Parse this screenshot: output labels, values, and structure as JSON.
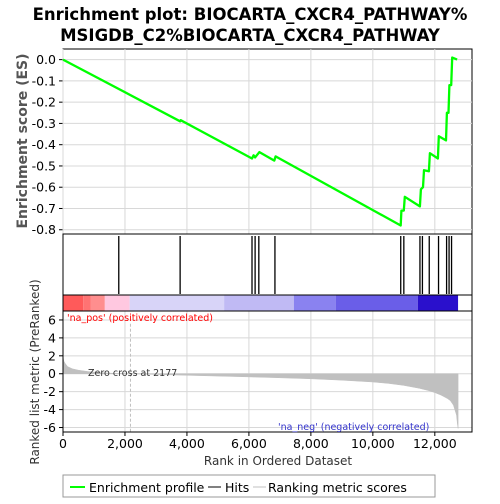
{
  "title_line1": "Enrichment plot: BIOCARTA_CXCR4_PATHWAY%",
  "title_line2": "MSIGDB_C2%BIOCARTA_CXCR4_PATHWAY",
  "colors": {
    "enrichment_line": "#00ff00",
    "hit_line": "#000000",
    "metric_fill": "#c0c0c0",
    "grid": "#d8d8d8",
    "pos_label": "#ff0000",
    "neg_label": "#3333cc",
    "zero_cross_line": "#c0c0c0"
  },
  "annotations": {
    "na_pos": "'na_pos' (positively correlated)",
    "na_neg": "'na_neg' (negatively correlated)",
    "zero_cross": "Zero cross at 2177"
  },
  "legend": {
    "items": [
      "Enrichment profile",
      "Hits",
      "Ranking metric scores"
    ]
  },
  "chart_data": [
    {
      "type": "line",
      "title": "",
      "ylabel": "Enrichment score (ES)",
      "xlim": [
        0,
        13200
      ],
      "ylim": [
        -0.82,
        0.05
      ],
      "yticks": [
        0.0,
        -0.1,
        -0.2,
        -0.3,
        -0.4,
        -0.5,
        -0.6,
        -0.7,
        -0.8
      ],
      "ytick_labels": [
        "0.0",
        "-0.1",
        "-0.2",
        "-0.3",
        "-0.4",
        "-0.5",
        "-0.6",
        "-0.7",
        "-0.8"
      ],
      "grid": true,
      "series": [
        {
          "name": "Enrichment profile",
          "x": [
            0,
            3780,
            3800,
            6100,
            6150,
            6200,
            6280,
            6340,
            6820,
            6860,
            10900,
            10920,
            11000,
            11030,
            11520,
            11550,
            11620,
            11650,
            11810,
            11840,
            12100,
            12130,
            12360,
            12390,
            12440,
            12470,
            12530,
            12560,
            12720
          ],
          "y": [
            0.0,
            -0.29,
            -0.285,
            -0.465,
            -0.45,
            -0.46,
            -0.445,
            -0.435,
            -0.475,
            -0.455,
            -0.78,
            -0.71,
            -0.71,
            -0.645,
            -0.69,
            -0.61,
            -0.6,
            -0.52,
            -0.525,
            -0.44,
            -0.465,
            -0.36,
            -0.38,
            -0.25,
            -0.25,
            -0.12,
            -0.12,
            0.01,
            0.0
          ]
        }
      ]
    },
    {
      "type": "hits",
      "name": "Hits",
      "positions": [
        1800,
        3780,
        6100,
        6200,
        6320,
        6840,
        10900,
        11000,
        11520,
        11600,
        11820,
        12120,
        12380,
        12460,
        12540
      ]
    },
    {
      "type": "heatmap",
      "name": "ranking color bar",
      "segments": [
        {
          "start": 0,
          "end": 650,
          "color": "#ff5a5a"
        },
        {
          "start": 650,
          "end": 900,
          "color": "#ff7373"
        },
        {
          "start": 900,
          "end": 1350,
          "color": "#ff8e8e"
        },
        {
          "start": 1350,
          "end": 2150,
          "color": "#ffc8e0"
        },
        {
          "start": 2150,
          "end": 5200,
          "color": "#d8d4f8"
        },
        {
          "start": 5200,
          "end": 7450,
          "color": "#c0baf4"
        },
        {
          "start": 7450,
          "end": 8800,
          "color": "#8a82f0"
        },
        {
          "start": 8800,
          "end": 11450,
          "color": "#6a5ee8"
        },
        {
          "start": 11450,
          "end": 12750,
          "color": "#2a10cc"
        }
      ]
    },
    {
      "type": "area",
      "title": "",
      "xlabel": "Rank in Ordered Dataset",
      "ylabel": "Ranked list metric (PreRanked)",
      "xlim": [
        0,
        13200
      ],
      "ylim": [
        -6.5,
        7
      ],
      "xticks": [
        0,
        2000,
        4000,
        6000,
        8000,
        10000,
        12000
      ],
      "xtick_labels": [
        "0",
        "2,000",
        "4,000",
        "6,000",
        "8,000",
        "10,000",
        "12,000"
      ],
      "yticks": [
        6,
        4,
        2,
        0,
        -2,
        -4,
        -6
      ],
      "ytick_labels": [
        "6",
        "4",
        "2",
        "0",
        "-2",
        "-4",
        "-6"
      ],
      "zero_cross": 2177,
      "series": [
        {
          "name": "Ranking metric scores",
          "x": [
            0,
            30,
            80,
            150,
            300,
            500,
            800,
            1200,
            1700,
            2177,
            3000,
            4000,
            5000,
            6000,
            7000,
            8000,
            9000,
            10000,
            10500,
            11000,
            11500,
            11800,
            12000,
            12200,
            12400,
            12500,
            12600,
            12700,
            12730,
            12750
          ],
          "y": [
            1.9,
            1.4,
            1.1,
            0.8,
            0.55,
            0.4,
            0.25,
            0.12,
            0.04,
            0.0,
            -0.08,
            -0.17,
            -0.26,
            -0.35,
            -0.45,
            -0.57,
            -0.72,
            -0.92,
            -1.08,
            -1.3,
            -1.62,
            -1.88,
            -2.1,
            -2.38,
            -2.75,
            -3.0,
            -3.5,
            -4.6,
            -5.6,
            -6.1
          ]
        }
      ]
    }
  ]
}
